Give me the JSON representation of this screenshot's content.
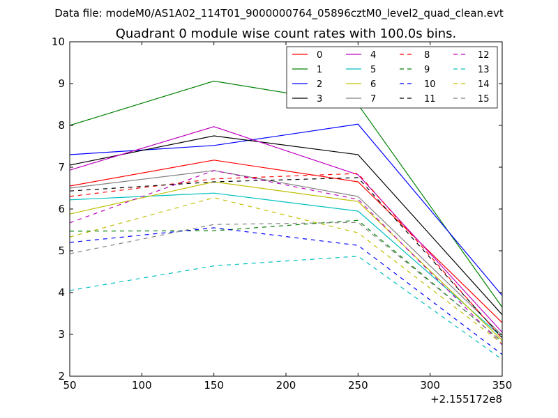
{
  "suptitle": "Data file: modeM0/AS1A02_114T01_9000000764_05896cztM0_level2_quad_clean.evt",
  "chart_data": {
    "type": "line",
    "title": "Quadrant 0 module wise count rates with 100.0s bins.",
    "xlabel": "",
    "ylabel": "",
    "x_offset_label": "+2.155172e8",
    "xlim": [
      50,
      350
    ],
    "ylim": [
      2,
      10
    ],
    "xticks": [
      "50",
      "100",
      "150",
      "200",
      "250",
      "300",
      "350"
    ],
    "yticks": [
      "2",
      "3",
      "4",
      "5",
      "6",
      "7",
      "8",
      "9",
      "10"
    ],
    "x": [
      50,
      150,
      250,
      350
    ],
    "legend_position": "top-right",
    "series": [
      {
        "name": "0",
        "color": "#ff0000",
        "dash": "solid",
        "values": [
          6.55,
          7.17,
          6.65,
          3.28
        ]
      },
      {
        "name": "1",
        "color": "#008000",
        "dash": "solid",
        "values": [
          8.0,
          9.06,
          8.5,
          3.65
        ]
      },
      {
        "name": "2",
        "color": "#0000ff",
        "dash": "solid",
        "values": [
          7.3,
          7.52,
          8.03,
          3.93
        ]
      },
      {
        "name": "3",
        "color": "#000000",
        "dash": "solid",
        "values": [
          7.05,
          7.75,
          7.3,
          3.47
        ]
      },
      {
        "name": "4",
        "color": "#bf00bf",
        "dash": "solid",
        "values": [
          6.93,
          7.97,
          6.82,
          3.05
        ]
      },
      {
        "name": "5",
        "color": "#00bfbf",
        "dash": "solid",
        "values": [
          6.22,
          6.38,
          5.95,
          2.93
        ]
      },
      {
        "name": "6",
        "color": "#bfbf00",
        "dash": "solid",
        "values": [
          5.88,
          6.65,
          6.18,
          2.86
        ]
      },
      {
        "name": "7",
        "color": "#808080",
        "dash": "solid",
        "values": [
          6.5,
          6.92,
          6.3,
          2.98
        ]
      },
      {
        "name": "8",
        "color": "#ff0000",
        "dash": "dashed",
        "values": [
          6.3,
          6.72,
          6.85,
          2.9
        ]
      },
      {
        "name": "9",
        "color": "#008000",
        "dash": "dashed",
        "values": [
          5.47,
          5.48,
          5.73,
          2.82
        ]
      },
      {
        "name": "10",
        "color": "#0000ff",
        "dash": "dashed",
        "values": [
          5.2,
          5.55,
          5.13,
          2.52
        ]
      },
      {
        "name": "11",
        "color": "#000000",
        "dash": "dashed",
        "values": [
          6.43,
          6.65,
          6.75,
          2.92
        ]
      },
      {
        "name": "12",
        "color": "#bf00bf",
        "dash": "dashed",
        "values": [
          5.67,
          6.92,
          6.23,
          2.75
        ]
      },
      {
        "name": "13",
        "color": "#00bfbf",
        "dash": "dashed",
        "values": [
          4.05,
          4.64,
          4.87,
          2.4
        ]
      },
      {
        "name": "14",
        "color": "#bfbf00",
        "dash": "dashed",
        "values": [
          5.33,
          6.27,
          5.43,
          2.78
        ]
      },
      {
        "name": "15",
        "color": "#808080",
        "dash": "dashed",
        "values": [
          4.93,
          5.63,
          5.68,
          2.83
        ]
      }
    ]
  }
}
